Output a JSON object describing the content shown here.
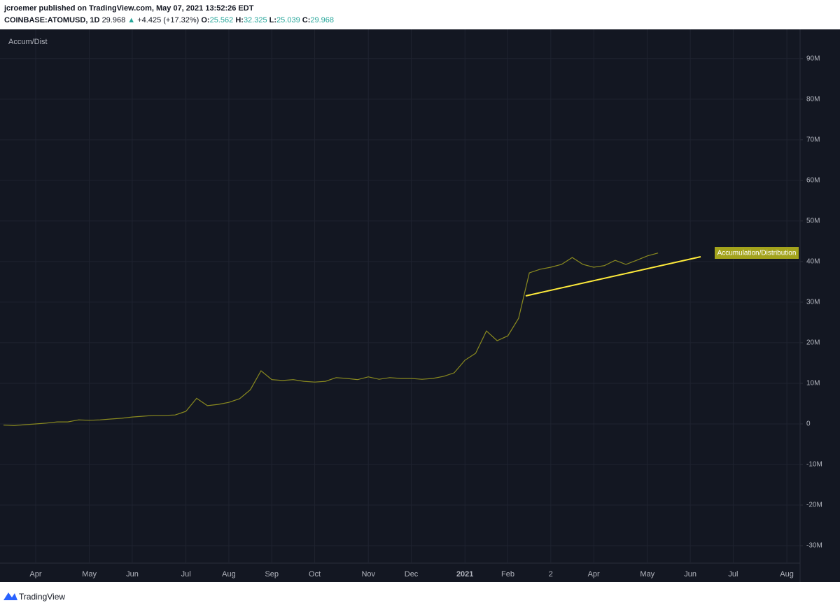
{
  "header": {
    "author_line": "jcroemer published on TradingView.com, May 07, 2021 13:52:26 EDT",
    "symbol": "COINBASE:ATOMUSD, 1D",
    "last": "29.968",
    "arrow": "▲",
    "change": "+4.425 (+17.32%)",
    "ohlc": [
      {
        "label": "O:",
        "value": "25.562"
      },
      {
        "label": "H:",
        "value": "32.325"
      },
      {
        "label": "L:",
        "value": "25.039"
      },
      {
        "label": "C:",
        "value": "29.968"
      }
    ]
  },
  "chart_data": {
    "type": "line",
    "title": "Accum/Dist",
    "annotation": "Accumulation/Distribution",
    "categories": [
      null,
      null,
      null,
      "Apr",
      null,
      null,
      null,
      null,
      "May",
      null,
      null,
      null,
      "Jun",
      null,
      null,
      null,
      null,
      "Jul",
      null,
      null,
      null,
      "Aug",
      null,
      null,
      null,
      "Sep",
      null,
      null,
      null,
      "Oct",
      null,
      null,
      null,
      null,
      "Nov",
      null,
      null,
      null,
      "Dec",
      null,
      null,
      null,
      null,
      "2021",
      null,
      null,
      null,
      "Feb",
      null,
      null,
      null,
      "2",
      null,
      null,
      null,
      "Apr",
      null,
      null,
      null,
      null,
      "May",
      null,
      null,
      null,
      "Jun",
      null,
      null,
      null,
      "Jul",
      null,
      null,
      null,
      null,
      "Aug",
      null
    ],
    "series": [
      {
        "color": "#8a8a1f",
        "values": [
          -300000,
          -400000,
          -200000,
          0,
          200000,
          500000,
          500000,
          1000000,
          900000,
          1000000,
          1200000,
          1400000,
          1700000,
          1900000,
          2100000,
          2100000,
          2200000,
          3100000,
          6300000,
          4500000,
          4800000,
          5300000,
          6200000,
          8400000,
          13100000,
          10900000,
          10700000,
          10900000,
          10500000,
          10300000,
          10500000,
          11400000,
          11200000,
          10900000,
          11600000,
          11000000,
          11400000,
          11200000,
          11200000,
          11000000,
          11200000,
          11700000,
          12600000,
          15700000,
          17400000,
          22900000,
          20500000,
          21700000,
          26000000,
          37200000,
          38100000,
          38600000,
          39300000,
          41000000,
          39300000,
          38600000,
          39000000,
          40300000,
          39300000,
          40300000,
          41400000,
          42100000,
          null,
          null,
          null,
          null,
          null,
          null,
          null,
          null,
          null,
          null,
          null,
          null,
          null
        ]
      }
    ],
    "ylim": [
      -34300000,
      97200000
    ],
    "yticks": [
      {
        "value": 90000000,
        "label": "90M"
      },
      {
        "value": 80000000,
        "label": "80M"
      },
      {
        "value": 70000000,
        "label": "70M"
      },
      {
        "value": 60000000,
        "label": "60M"
      },
      {
        "value": 50000000,
        "label": "50M"
      },
      {
        "value": 40000000,
        "label": "40M"
      },
      {
        "value": 30000000,
        "label": "30M"
      },
      {
        "value": 20000000,
        "label": "20M"
      },
      {
        "value": 10000000,
        "label": "10M"
      },
      0,
      {
        "value": -10000000,
        "label": "-10M"
      },
      {
        "value": -20000000,
        "label": "-20M"
      },
      {
        "value": -30000000,
        "label": "-30M"
      }
    ],
    "grid": true
  },
  "footer": {
    "brand": "TradingView"
  }
}
